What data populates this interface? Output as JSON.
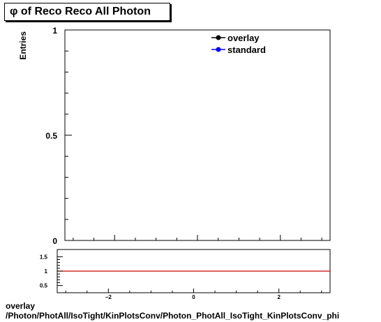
{
  "title": "φ of Reco Reco All Photon",
  "footer": {
    "line1": "overlay",
    "line2": "/Photon/PhotAll/IsoTight/KinPlotsConv/Photon_PhotAll_IsoTight_KinPlotsConv_phi"
  },
  "colors": {
    "overlay": "#000000",
    "standard": "#0000ff",
    "ratio_line": "#cc0000"
  },
  "chart_data": [
    {
      "type": "line",
      "ylabel": "Entries",
      "xlim": [
        -3.2,
        3.2
      ],
      "ylim": [
        0,
        1
      ],
      "y_ticks": [
        {
          "value": 0,
          "label": "0"
        },
        {
          "value": 0.5,
          "label": "0.5"
        },
        {
          "value": 1,
          "label": "1"
        }
      ],
      "series": [
        {
          "name": "overlay",
          "values": []
        },
        {
          "name": "standard",
          "values": []
        }
      ],
      "legend": {
        "position": "top-right"
      }
    },
    {
      "type": "line",
      "xlim": [
        -3.2,
        3.2
      ],
      "ylim": [
        0.25,
        1.75
      ],
      "x_ticks": [
        {
          "value": -2,
          "label": "−2"
        },
        {
          "value": 0,
          "label": "0"
        },
        {
          "value": 2,
          "label": "2"
        }
      ],
      "y_ticks": [
        {
          "value": 0.5,
          "label": "0.5"
        },
        {
          "value": 1,
          "label": "1"
        },
        {
          "value": 1.5,
          "label": "1.5"
        }
      ],
      "reference_line": 1
    }
  ]
}
